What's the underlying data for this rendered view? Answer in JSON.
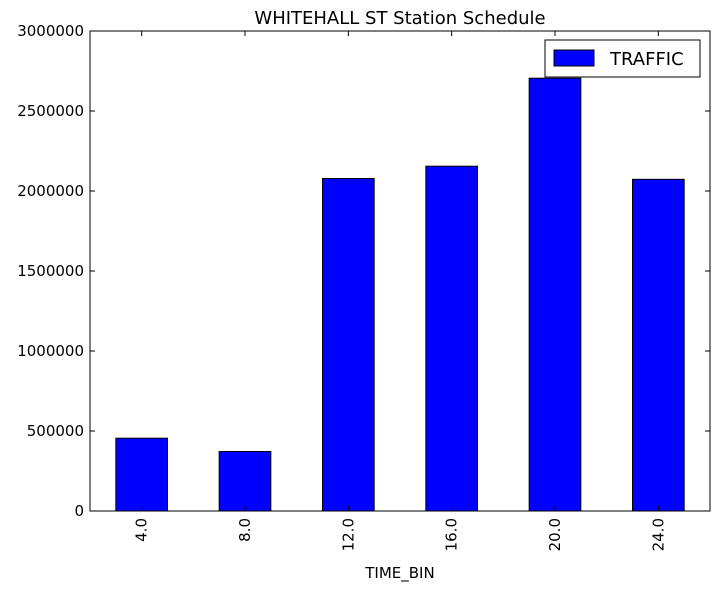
{
  "chart_data": {
    "type": "bar",
    "title": "WHITEHALL ST Station Schedule",
    "xlabel": "TIME_BIN",
    "ylabel": "",
    "categories": [
      "4.0",
      "8.0",
      "12.0",
      "16.0",
      "20.0",
      "24.0"
    ],
    "series": [
      {
        "name": "TRAFFIC",
        "values": [
          455000,
          372000,
          2078000,
          2155000,
          2705000,
          2073000
        ],
        "color": "#0000ff"
      }
    ],
    "ylim": [
      0,
      3000000
    ],
    "yticks": [
      0,
      500000,
      1000000,
      1500000,
      2000000,
      2500000,
      3000000
    ],
    "ytick_labels": [
      "0",
      "500000",
      "1000000",
      "1500000",
      "2000000",
      "2500000",
      "3000000"
    ],
    "grid": false,
    "legend_position": "top-right"
  }
}
